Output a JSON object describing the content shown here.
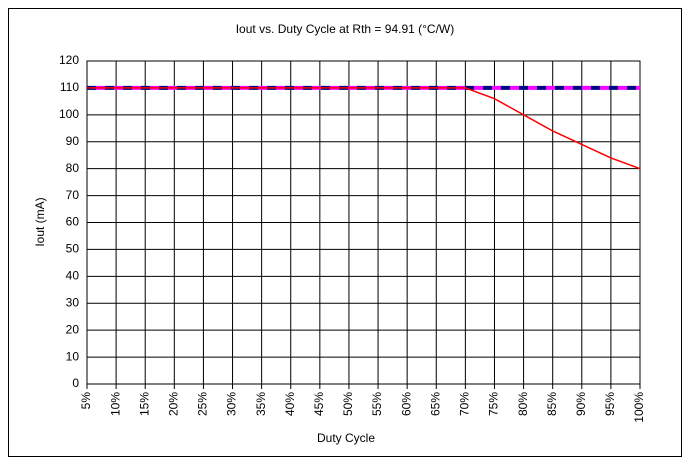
{
  "chart_data": {
    "type": "line",
    "title": "Iout vs. Duty Cycle at Rth = 94.91 (°C/W)",
    "x_label": "Duty Cycle",
    "y_label": "Iout (mA)",
    "categories": [
      "5%",
      "10%",
      "15%",
      "20%",
      "25%",
      "30%",
      "35%",
      "40%",
      "45%",
      "50%",
      "55%",
      "60%",
      "65%",
      "70%",
      "75%",
      "80%",
      "85%",
      "90%",
      "95%",
      "100%"
    ],
    "series": [
      {
        "color": "#000080",
        "style": "dashed",
        "values": [
          110,
          110,
          110,
          110,
          110,
          110,
          110,
          110,
          110,
          110,
          110,
          110,
          110,
          110,
          110,
          110,
          110,
          110,
          110,
          110
        ]
      },
      {
        "color": "#ff00ff",
        "style": "dashed",
        "values": [
          110,
          110,
          110,
          110,
          110,
          110,
          110,
          110,
          110,
          110,
          110,
          110,
          110,
          110,
          110,
          110,
          110,
          110,
          110,
          110
        ]
      },
      {
        "color": "#ff0000",
        "style": "solid",
        "values": [
          110,
          110,
          110,
          110,
          110,
          110,
          110,
          110,
          110,
          110,
          110,
          110,
          110,
          110,
          106,
          100,
          94,
          89,
          84,
          80
        ]
      }
    ],
    "ylim": [
      0,
      120
    ],
    "yticks": [
      0,
      10,
      20,
      30,
      40,
      50,
      60,
      70,
      80,
      90,
      100,
      110,
      120
    ],
    "grid": true
  }
}
